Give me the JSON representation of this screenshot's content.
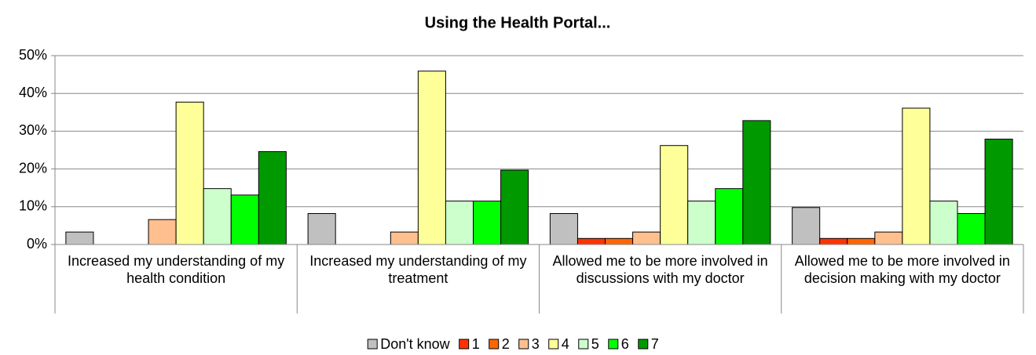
{
  "chart_data": {
    "type": "bar",
    "title": "Using the Health Portal...",
    "categories": [
      "Increased my understanding of my health condition",
      "Increased my understanding of my treatment",
      "Allowed me to be more involved in discussions with my doctor",
      "Allowed me to be more involved in decision making with my doctor"
    ],
    "series": [
      {
        "name": "Don't know",
        "color": "#c0c0c0",
        "values": [
          3.3,
          8.2,
          8.2,
          9.8
        ]
      },
      {
        "name": "1",
        "color": "#ff3300",
        "values": [
          0,
          0,
          1.6,
          1.6
        ]
      },
      {
        "name": "2",
        "color": "#ff6600",
        "values": [
          0,
          0,
          1.6,
          1.6
        ]
      },
      {
        "name": "3",
        "color": "#ffbf8f",
        "values": [
          6.6,
          3.3,
          3.3,
          3.3
        ]
      },
      {
        "name": "4",
        "color": "#ffff99",
        "values": [
          37.7,
          45.9,
          26.2,
          36.1
        ]
      },
      {
        "name": "5",
        "color": "#ccffcc",
        "values": [
          14.8,
          11.5,
          11.5,
          11.5
        ]
      },
      {
        "name": "6",
        "color": "#00ff00",
        "values": [
          13.1,
          11.5,
          14.8,
          8.2
        ]
      },
      {
        "name": "7",
        "color": "#009900",
        "values": [
          24.6,
          19.7,
          32.8,
          27.9
        ]
      }
    ],
    "ylim": [
      0,
      50
    ],
    "yticks": [
      {
        "value": 0,
        "label": "0%"
      },
      {
        "value": 10,
        "label": "10%"
      },
      {
        "value": 20,
        "label": "20%"
      },
      {
        "value": 30,
        "label": "30%"
      },
      {
        "value": 40,
        "label": "40%"
      },
      {
        "value": 50,
        "label": "50%"
      }
    ],
    "grid": true,
    "legend": "bottom"
  }
}
